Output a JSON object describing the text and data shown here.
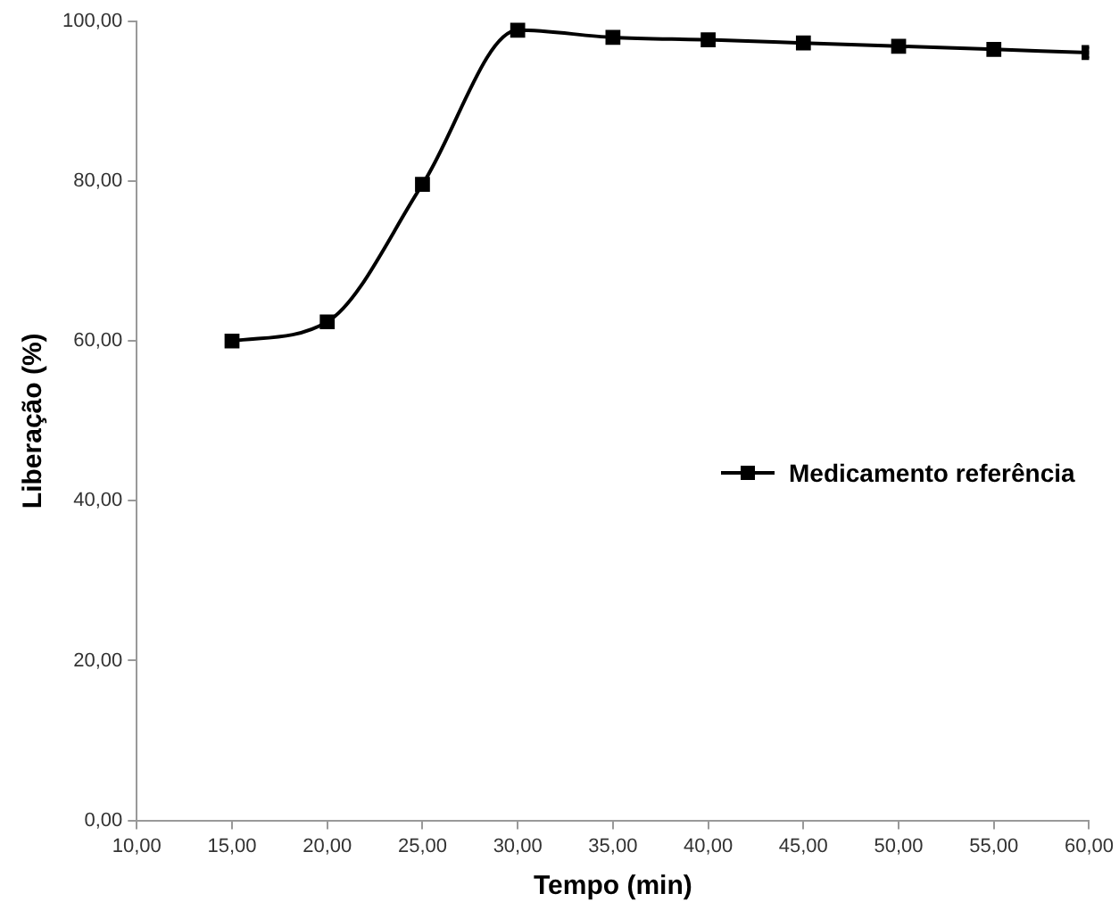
{
  "chart_data": {
    "type": "line",
    "xlabel": "Tempo (min)",
    "ylabel": "Liberação (%)",
    "x": [
      15,
      20,
      25,
      30,
      35,
      40,
      45,
      50,
      55,
      60
    ],
    "series": [
      {
        "name": "Medicamento referência",
        "color": "#000000",
        "values": [
          60.0,
          62.4,
          79.6,
          98.9,
          98.0,
          97.7,
          97.3,
          96.9,
          96.5,
          96.1
        ]
      }
    ],
    "xlim": [
      10,
      60
    ],
    "ylim": [
      0,
      100
    ],
    "xticks": [
      {
        "value": 10,
        "label": "10,00"
      },
      {
        "value": 15,
        "label": "15,00"
      },
      {
        "value": 20,
        "label": "20,00"
      },
      {
        "value": 25,
        "label": "25,00"
      },
      {
        "value": 30,
        "label": "30,00"
      },
      {
        "value": 35,
        "label": "35,00"
      },
      {
        "value": 40,
        "label": "40,00"
      },
      {
        "value": 45,
        "label": "45,00"
      },
      {
        "value": 50,
        "label": "50,00"
      },
      {
        "value": 55,
        "label": "55,00"
      },
      {
        "value": 60,
        "label": "60,00"
      }
    ],
    "yticks": [
      {
        "value": 0,
        "label": "0,00"
      },
      {
        "value": 20,
        "label": "20,00"
      },
      {
        "value": 40,
        "label": "40,00"
      },
      {
        "value": 60,
        "label": "60,00"
      },
      {
        "value": 80,
        "label": "80,00"
      },
      {
        "value": 100,
        "label": "100,00"
      }
    ],
    "grid": false,
    "legend": "right",
    "marker": "square",
    "line_style": "solid"
  }
}
